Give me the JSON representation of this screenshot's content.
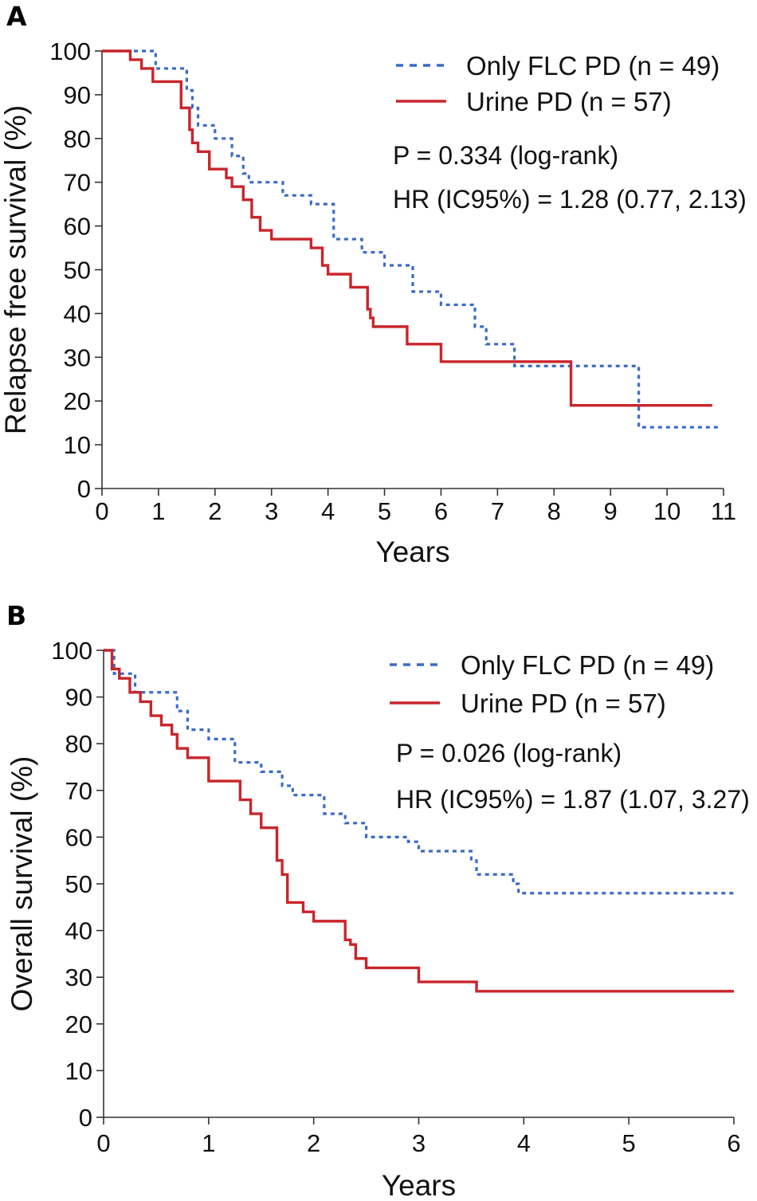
{
  "chart_data": [
    {
      "panel_label": "A",
      "type": "line",
      "subtype": "kaplan-meier",
      "title": "",
      "xlabel": "Years",
      "ylabel": "Relapse free survival (%)",
      "xlim": [
        0,
        11
      ],
      "ylim": [
        0,
        100
      ],
      "xticks": [
        "0",
        "1",
        "2",
        "3",
        "4",
        "5",
        "6",
        "7",
        "8",
        "9",
        "10",
        "11"
      ],
      "yticks": [
        "0",
        "10",
        "20",
        "30",
        "40",
        "50",
        "60",
        "70",
        "80",
        "90",
        "100"
      ],
      "legend_position": "top-right",
      "annotations": [
        "P = 0.334 (log-rank)",
        "HR (IC95%) = 1.28 (0.77, 2.13)"
      ],
      "series": [
        {
          "name": "Only FLC PD (n = 49)",
          "color": "#3a6bc4",
          "style": "dotted",
          "x": [
            0,
            0.95,
            1.5,
            1.6,
            1.7,
            2.0,
            2.3,
            2.5,
            2.6,
            2.7,
            3.2,
            3.7,
            4.1,
            4.2,
            4.6,
            5.0,
            5.5,
            5.7,
            6.0,
            6.6,
            6.8,
            7.3,
            9.5,
            10.9
          ],
          "y": [
            100,
            96,
            91,
            87,
            83,
            80,
            76,
            72,
            70,
            70,
            67,
            65,
            57,
            57,
            54,
            51,
            45,
            45,
            42,
            37,
            33,
            28,
            14,
            14
          ]
        },
        {
          "name": "Urine PD (n = 57)",
          "color": "#c9252b",
          "style": "solid",
          "x": [
            0,
            0.5,
            0.7,
            0.9,
            1.4,
            1.55,
            1.6,
            1.7,
            1.9,
            2.2,
            2.3,
            2.5,
            2.65,
            2.8,
            3.0,
            3.7,
            3.9,
            4.0,
            4.4,
            4.7,
            4.75,
            4.8,
            5.4,
            6.0,
            8.2,
            8.3,
            10.8
          ],
          "y": [
            100,
            98,
            96,
            93,
            87,
            82,
            79,
            77,
            73,
            71,
            69,
            66,
            62,
            59,
            57,
            55,
            51,
            49,
            46,
            41,
            39,
            37,
            33,
            29,
            29,
            19,
            19
          ]
        }
      ]
    },
    {
      "panel_label": "B",
      "type": "line",
      "subtype": "kaplan-meier",
      "title": "",
      "xlabel": "Years",
      "ylabel": "Overall survival (%)",
      "xlim": [
        0,
        6
      ],
      "ylim": [
        0,
        100
      ],
      "xticks": [
        "0",
        "1",
        "2",
        "3",
        "4",
        "5",
        "6"
      ],
      "yticks": [
        "0",
        "10",
        "20",
        "30",
        "40",
        "50",
        "60",
        "70",
        "80",
        "90",
        "100"
      ],
      "legend_position": "top-right",
      "annotations": [
        "P = 0.026 (log-rank)",
        "HR (IC95%) = 1.87 (1.07, 3.27)"
      ],
      "series": [
        {
          "name": "Only FLC PD (n = 49)",
          "color": "#3a6bc4",
          "style": "dotted",
          "x": [
            0,
            0.1,
            0.3,
            0.7,
            0.8,
            1.0,
            1.25,
            1.5,
            1.7,
            1.8,
            2.1,
            2.3,
            2.5,
            2.9,
            3.0,
            3.1,
            3.5,
            3.55,
            3.9,
            3.95,
            6.0
          ],
          "y": [
            100,
            95,
            91,
            87,
            83,
            81,
            76,
            74,
            71,
            69,
            65,
            63,
            60,
            59,
            57,
            57,
            55,
            52,
            50,
            48,
            48
          ]
        },
        {
          "name": "Urine PD (n = 57)",
          "color": "#c9252b",
          "style": "solid",
          "x": [
            0,
            0.08,
            0.15,
            0.25,
            0.35,
            0.45,
            0.55,
            0.65,
            0.7,
            0.8,
            1.0,
            1.3,
            1.4,
            1.5,
            1.65,
            1.7,
            1.75,
            1.9,
            2.0,
            2.3,
            2.35,
            2.4,
            2.5,
            3.0,
            3.55,
            6.0
          ],
          "y": [
            100,
            96,
            94,
            91,
            89,
            86,
            84,
            82,
            79,
            77,
            72,
            68,
            65,
            62,
            55,
            52,
            46,
            44,
            42,
            38,
            37,
            34,
            32,
            29,
            27,
            27
          ]
        }
      ]
    }
  ]
}
